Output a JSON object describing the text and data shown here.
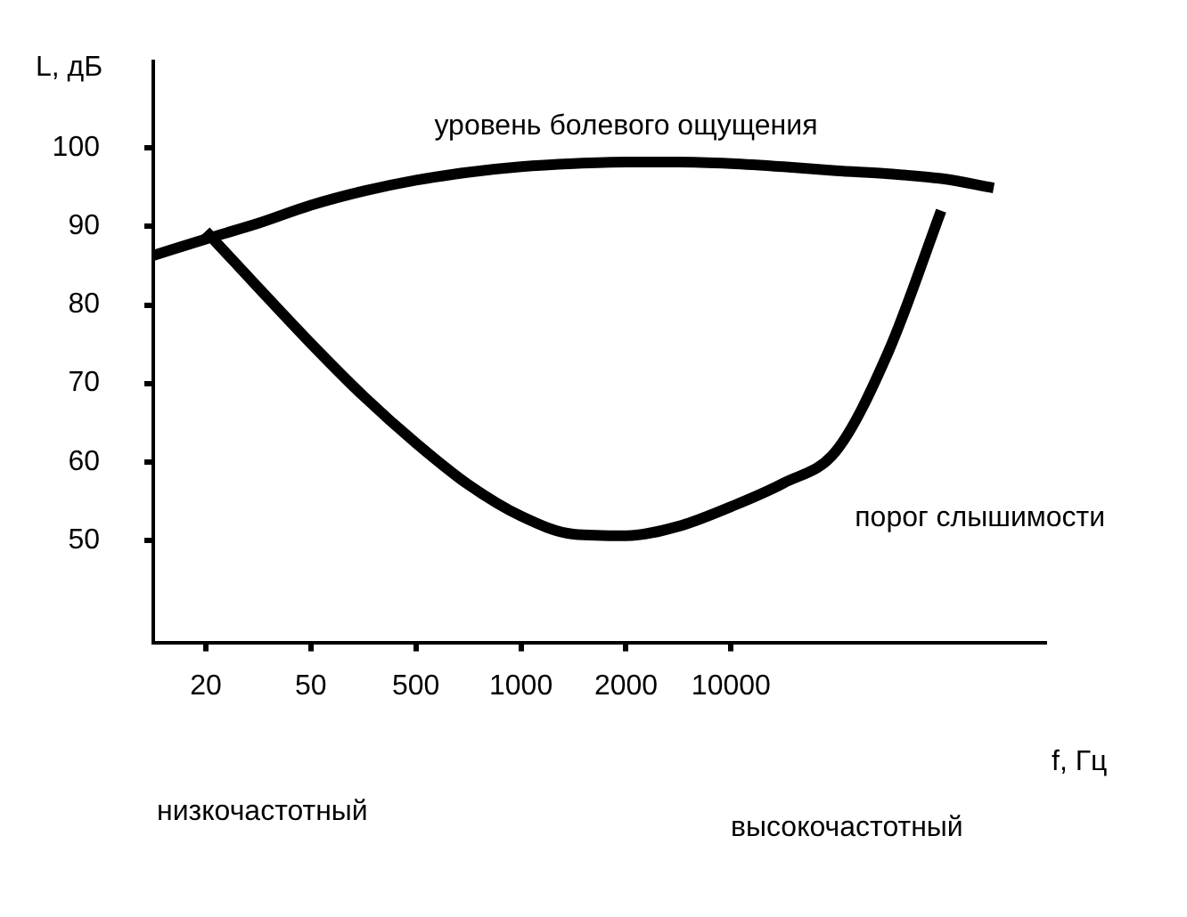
{
  "chart_data": {
    "type": "line",
    "ylabel": "L, дБ",
    "xlabel": "f, Гц",
    "categories": [
      null,
      "20",
      null,
      "50",
      null,
      "500",
      null,
      "1000",
      null,
      "2000",
      null,
      "10000",
      null,
      null,
      null,
      null,
      null,
      null
    ],
    "series": [
      {
        "name": "уровень болевого ощущения",
        "color": "#000000",
        "values": [
          86.3,
          88.4,
          90.4,
          92.7,
          94.5,
          95.9,
          96.9,
          97.6,
          98.0,
          98.2,
          98.2,
          98.0,
          97.6,
          97.1,
          96.7,
          96.1,
          94.9,
          null
        ]
      },
      {
        "name": "порог слышимости",
        "color": "#000000",
        "values": [
          null,
          89.4,
          82.2,
          75.1,
          68.4,
          62.4,
          57.1,
          53.1,
          50.8,
          50.6,
          51.8,
          54.3,
          57.3,
          61.4,
          74.1,
          92.0,
          null,
          null
        ]
      }
    ],
    "ylim": [
      37,
      111
    ],
    "yticks": [
      50,
      60,
      70,
      80,
      90,
      100
    ],
    "grid": false,
    "marker": "none",
    "line_style": "solid",
    "annotations": [
      "низкочастотный",
      "высокочастотный"
    ]
  }
}
